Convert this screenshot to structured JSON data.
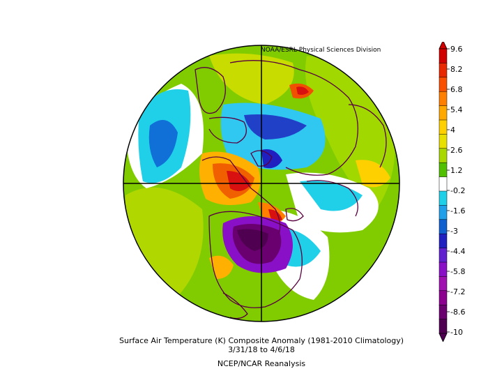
{
  "credit": "NOAA/ESRL Physical Sciences Division",
  "caption": {
    "title": "Surface Air Temperature (K) Composite Anomaly (1981-2010 Climatology)",
    "dates": "3/31/18  to 4/6/18",
    "source": "NCEP/NCAR Reanalysis"
  },
  "colorbar": {
    "labels": [
      "9.6",
      "8.2",
      "6.8",
      "5.4",
      "4",
      "2.6",
      "1.2",
      "-0.2",
      "-1.6",
      "-3",
      "-4.4",
      "-5.8",
      "-7.2",
      "-8.6",
      "-10"
    ],
    "colors": [
      "#d00000",
      "#e82800",
      "#f85000",
      "#ff7f00",
      "#ffa800",
      "#ffd000",
      "#e8e000",
      "#a8d800",
      "#50c000",
      "#ffffff",
      "#20d0e8",
      "#20a0e8",
      "#1060d0",
      "#2020c0",
      "#6020d0",
      "#8a10c8",
      "#a010b0",
      "#8c0090",
      "#6a0070",
      "#500050"
    ]
  },
  "colors": {
    "ocean_fill": "#80cc00",
    "continent_line": "#5a0040",
    "grid_line": "#000000"
  }
}
